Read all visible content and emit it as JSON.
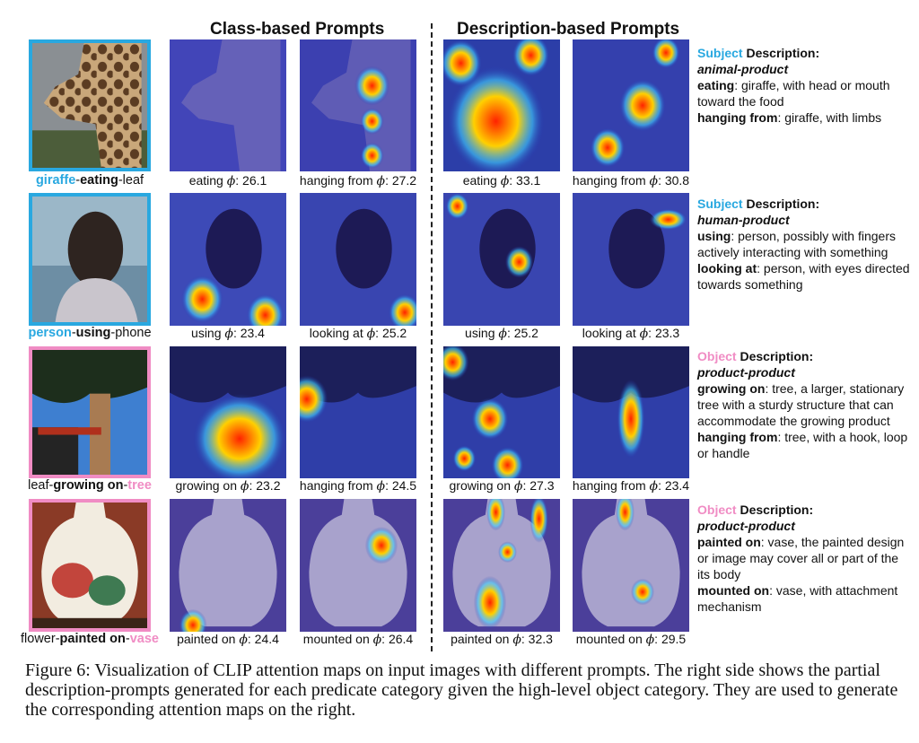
{
  "headers": {
    "class_based": "Class-based Prompts",
    "description_based": "Description-based Prompts"
  },
  "colors": {
    "subject": "#29a8e0",
    "object": "#f08cc4"
  },
  "rows": [
    {
      "triplet": {
        "subject": "giraffe",
        "predicate": "eating",
        "object": "leaf",
        "highlight": "subject"
      },
      "caps": [
        {
          "pred": "eating",
          "score": ": 26.1"
        },
        {
          "pred": "hanging from",
          "score": ": 27.2"
        },
        {
          "pred": "eating",
          "score": ": 33.1"
        },
        {
          "pred": "hanging from",
          "score": ": 30.8"
        }
      ],
      "desc": {
        "role": "Subject",
        "heading": "Description:",
        "category": "animal-product",
        "lines": [
          {
            "pred": "eating",
            "text": ": giraffe, with head or mouth toward the food"
          },
          {
            "pred": "hanging from",
            "text": ": giraffe, with limbs"
          }
        ]
      }
    },
    {
      "triplet": {
        "subject": "person",
        "predicate": "using",
        "object": "phone",
        "highlight": "subject"
      },
      "caps": [
        {
          "pred": "using",
          "score": ": 23.4"
        },
        {
          "pred": "looking at",
          "score": ": 25.2"
        },
        {
          "pred": "using",
          "score": ": 25.2"
        },
        {
          "pred": "looking at",
          "score": ": 23.3"
        }
      ],
      "desc": {
        "role": "Subject",
        "heading": "Description:",
        "category": "human-product",
        "lines": [
          {
            "pred": "using",
            "text": ": person, possibly with fingers actively interacting with something"
          },
          {
            "pred": "looking at",
            "text": ": person, with eyes directed towards something"
          }
        ]
      }
    },
    {
      "triplet": {
        "subject": "leaf",
        "predicate": "growing on",
        "object": "tree",
        "highlight": "object"
      },
      "caps": [
        {
          "pred": "growing on",
          "score": ": 23.2"
        },
        {
          "pred": "hanging from",
          "score": ": 24.5"
        },
        {
          "pred": "growing on",
          "score": ": 27.3"
        },
        {
          "pred": "hanging from",
          "score": ": 23.4"
        }
      ],
      "desc": {
        "role": "Object",
        "heading": "Description:",
        "category": "product-product",
        "lines": [
          {
            "pred": "growing on",
            "text": ": tree, a larger, stationary tree with a sturdy structure that can accommodate the growing product"
          },
          {
            "pred": "hanging from",
            "text": ": tree, with a hook, loop or handle"
          }
        ]
      }
    },
    {
      "triplet": {
        "subject": "flower",
        "predicate": "painted on",
        "object": "vase",
        "highlight": "object"
      },
      "caps": [
        {
          "pred": "painted on",
          "score": ": 24.4"
        },
        {
          "pred": "mounted on",
          "score": ": 26.4"
        },
        {
          "pred": "painted on",
          "score": ": 32.3"
        },
        {
          "pred": "mounted on",
          "score": ": 29.5"
        }
      ],
      "desc": {
        "role": "Object",
        "heading": "Description:",
        "category": "product-product",
        "lines": [
          {
            "pred": "painted on",
            "text": ": vase, the painted design or image may cover all or part of the its body"
          },
          {
            "pred": "mounted on",
            "text": ": vase, with attachment mechanism"
          }
        ]
      }
    }
  ],
  "phi": "ϕ",
  "figure_caption": "Figure 6: Visualization of CLIP attention maps on input images with different prompts. The right side shows the partial description-prompts generated for each predicate category given the high-level object category. They are used to generate the corresponding attention maps on the right."
}
